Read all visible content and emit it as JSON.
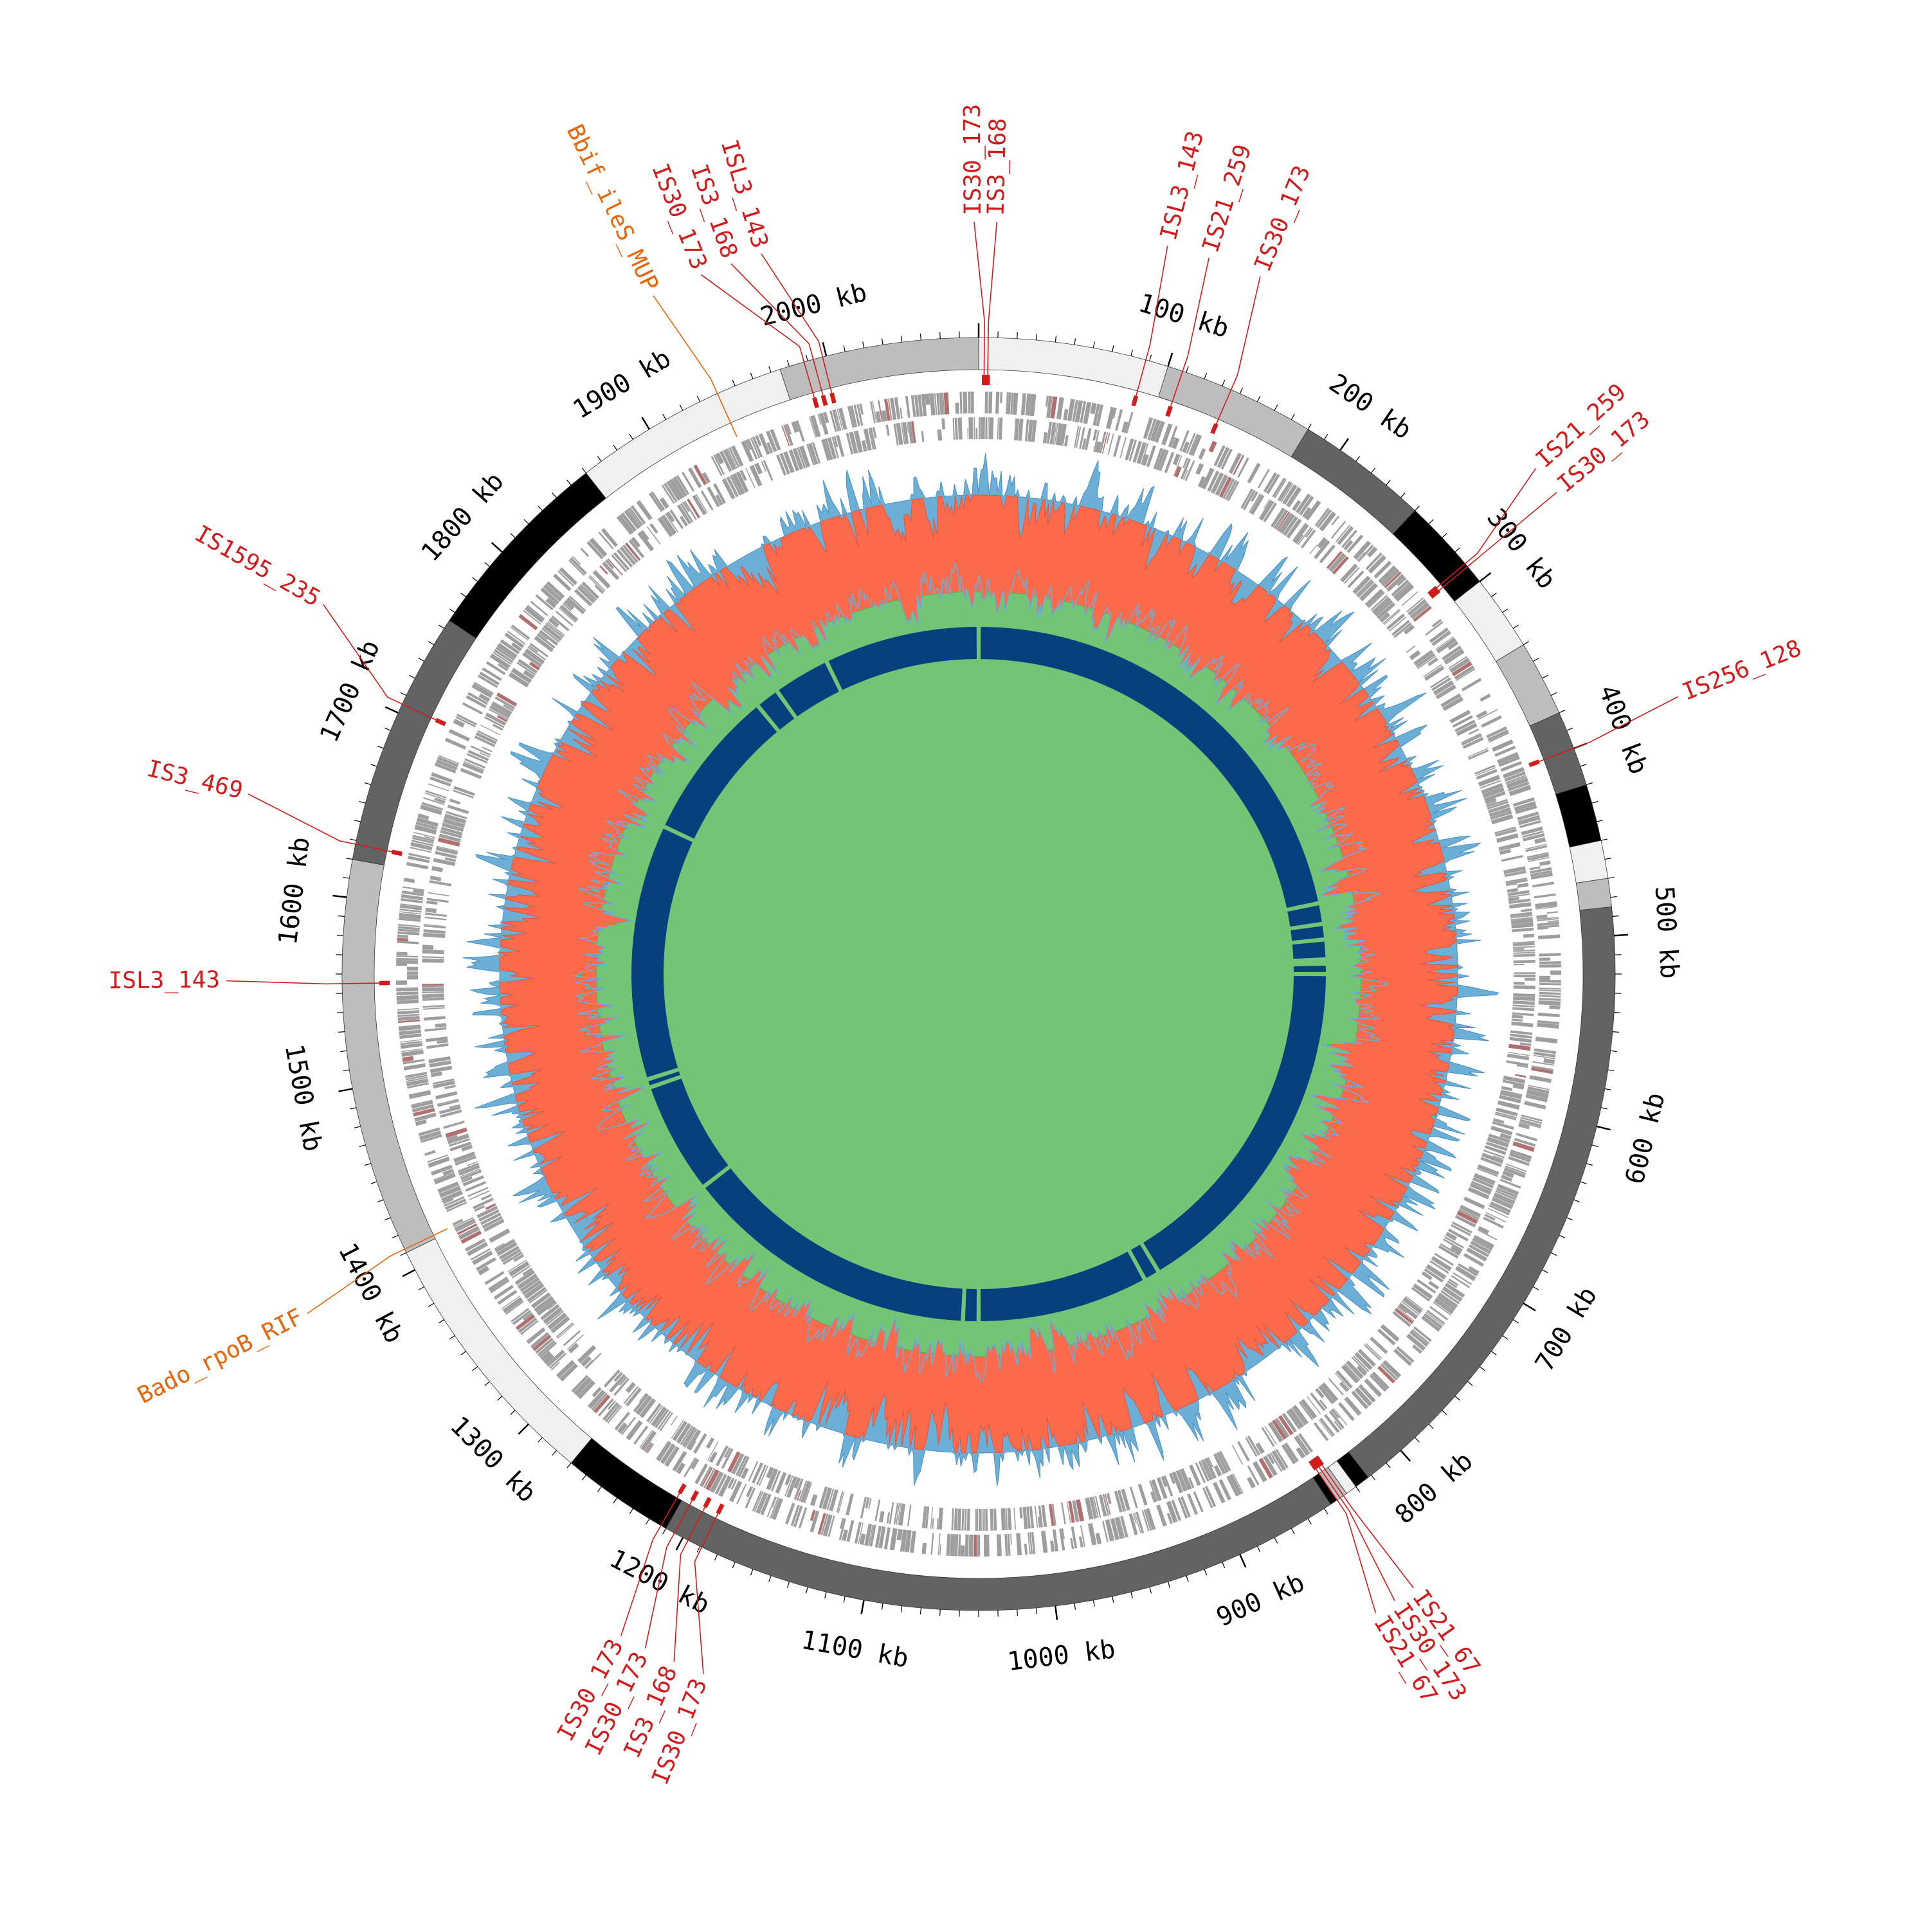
{
  "genome": {
    "length_kb": 2080,
    "ticks": [
      {
        "kb": 100,
        "label": "100 kb"
      },
      {
        "kb": 200,
        "label": "200 kb"
      },
      {
        "kb": 300,
        "label": "300 kb"
      },
      {
        "kb": 400,
        "label": "400 kb"
      },
      {
        "kb": 500,
        "label": "500 kb"
      },
      {
        "kb": 600,
        "label": "600 kb"
      },
      {
        "kb": 700,
        "label": "700 kb"
      },
      {
        "kb": 800,
        "label": "800 kb"
      },
      {
        "kb": 900,
        "label": "900 kb"
      },
      {
        "kb": 1000,
        "label": "1000 kb"
      },
      {
        "kb": 1100,
        "label": "1100 kb"
      },
      {
        "kb": 1200,
        "label": "1200 kb"
      },
      {
        "kb": 1300,
        "label": "1300 kb"
      },
      {
        "kb": 1400,
        "label": "1400 kb"
      },
      {
        "kb": 1500,
        "label": "1500 kb"
      },
      {
        "kb": 1600,
        "label": "1600 kb"
      },
      {
        "kb": 1700,
        "label": "1700 kb"
      },
      {
        "kb": 1800,
        "label": "1800 kb"
      },
      {
        "kb": 1900,
        "label": "1900 kb"
      },
      {
        "kb": 2000,
        "label": "2000 kb"
      }
    ]
  },
  "contigs": [
    {
      "start": 0,
      "end": 100,
      "color": "#f0f0f0"
    },
    {
      "start": 100,
      "end": 180,
      "color": "#bdbdbd"
    },
    {
      "start": 180,
      "end": 250,
      "color": "#636363"
    },
    {
      "start": 250,
      "end": 300,
      "color": "#000000"
    },
    {
      "start": 300,
      "end": 340,
      "color": "#f0f0f0"
    },
    {
      "start": 340,
      "end": 380,
      "color": "#bdbdbd"
    },
    {
      "start": 380,
      "end": 420,
      "color": "#636363"
    },
    {
      "start": 420,
      "end": 450,
      "color": "#000000"
    },
    {
      "start": 450,
      "end": 470,
      "color": "#f0f0f0"
    },
    {
      "start": 470,
      "end": 485,
      "color": "#bdbdbd"
    },
    {
      "start": 485,
      "end": 822,
      "color": "#636363"
    },
    {
      "start": 822,
      "end": 830,
      "color": "#000000"
    },
    {
      "start": 830,
      "end": 836,
      "color": "#f0f0f0"
    },
    {
      "start": 836,
      "end": 842,
      "color": "#bdbdbd"
    },
    {
      "start": 842,
      "end": 846,
      "color": "#000000"
    },
    {
      "start": 846,
      "end": 1210,
      "color": "#636363"
    },
    {
      "start": 1210,
      "end": 1270,
      "color": "#000000"
    },
    {
      "start": 1270,
      "end": 1410,
      "color": "#f0f0f0"
    },
    {
      "start": 1410,
      "end": 1620,
      "color": "#bdbdbd"
    },
    {
      "start": 1620,
      "end": 1755,
      "color": "#636363"
    },
    {
      "start": 1755,
      "end": 1860,
      "color": "#000000"
    },
    {
      "start": 1860,
      "end": 1975,
      "color": "#f0f0f0"
    },
    {
      "start": 1975,
      "end": 2080,
      "color": "#bdbdbd"
    }
  ],
  "features": {
    "is_color": "#d01c1c",
    "amr_color": "#e8650a",
    "labels": [
      {
        "kb": 3,
        "text": "IS30_173",
        "type": "is",
        "label_kb": -2
      },
      {
        "kb": 5,
        "text": "IS3_168",
        "type": "is",
        "label_kb": 8
      },
      {
        "kb": 88,
        "text": "ISL3_143",
        "type": "is",
        "label_kb": 84
      },
      {
        "kb": 108,
        "text": "IS21_259",
        "type": "is",
        "label_kb": 103
      },
      {
        "kb": 135,
        "text": "IS30_173",
        "type": "is",
        "label_kb": 127
      },
      {
        "kb": 288,
        "text": "IS21_259",
        "type": "is",
        "label_kb": 276
      },
      {
        "kb": 290,
        "text": "IS30_173",
        "type": "is",
        "label_kb": 290
      },
      {
        "kb": 400,
        "text": "IS256_128",
        "type": "is",
        "label_kb": 395
      },
      {
        "kb": 838,
        "text": "IS21_67",
        "type": "is",
        "label_kb": 836
      },
      {
        "kb": 840,
        "text": "IS30_173",
        "type": "is",
        "label_kb": 846
      },
      {
        "kb": 842,
        "text": "IS21_67",
        "type": "is",
        "label_kb": 856
      },
      {
        "kb": 1189,
        "text": "IS30_173",
        "type": "is",
        "label_kb": 1164
      },
      {
        "kb": 1197,
        "text": "IS3_168",
        "type": "is",
        "label_kb": 1178
      },
      {
        "kb": 1205,
        "text": "IS30_173",
        "type": "is",
        "label_kb": 1192
      },
      {
        "kb": 1213,
        "text": "IS30_173",
        "type": "is",
        "label_kb": 1204
      },
      {
        "kb": 1412,
        "text": "Bado_rpoB_RIF",
        "type": "amr",
        "label_kb": 1405
      },
      {
        "kb": 1555,
        "text": "ISL3_143",
        "type": "is",
        "label_kb": 1557
      },
      {
        "kb": 1628,
        "text": "IS3_469",
        "type": "is",
        "label_kb": 1640
      },
      {
        "kb": 1705,
        "text": "IS1595_235",
        "type": "is",
        "label_kb": 1730
      },
      {
        "kb": 1940,
        "text": "Bbif_ileS_MUP",
        "type": "amr",
        "label_kb": 1932
      },
      {
        "kb": 1988,
        "text": "IS30_173",
        "type": "is",
        "label_kb": 1955
      },
      {
        "kb": 1993,
        "text": "IS3_168",
        "type": "is",
        "label_kb": 1969
      },
      {
        "kb": 1998,
        "text": "ISL3_143",
        "type": "is",
        "label_kb": 1983
      }
    ]
  },
  "tracks": {
    "cds_color": "#9e9e9e",
    "cds_accent": "#b07070",
    "gc_skew_positive": "#6baed6",
    "gc_skew_negative": "#fb6a4a",
    "gc_content_color": "#74c476",
    "blast_color": "#08407e",
    "blast_gaps_kb": [
      0,
      452,
      472,
      487,
      506,
      510,
      520,
      860,
      875,
      1040,
      1055,
      1342,
      1450,
      1458,
      1705,
      1852,
      1875,
      1930
    ]
  }
}
